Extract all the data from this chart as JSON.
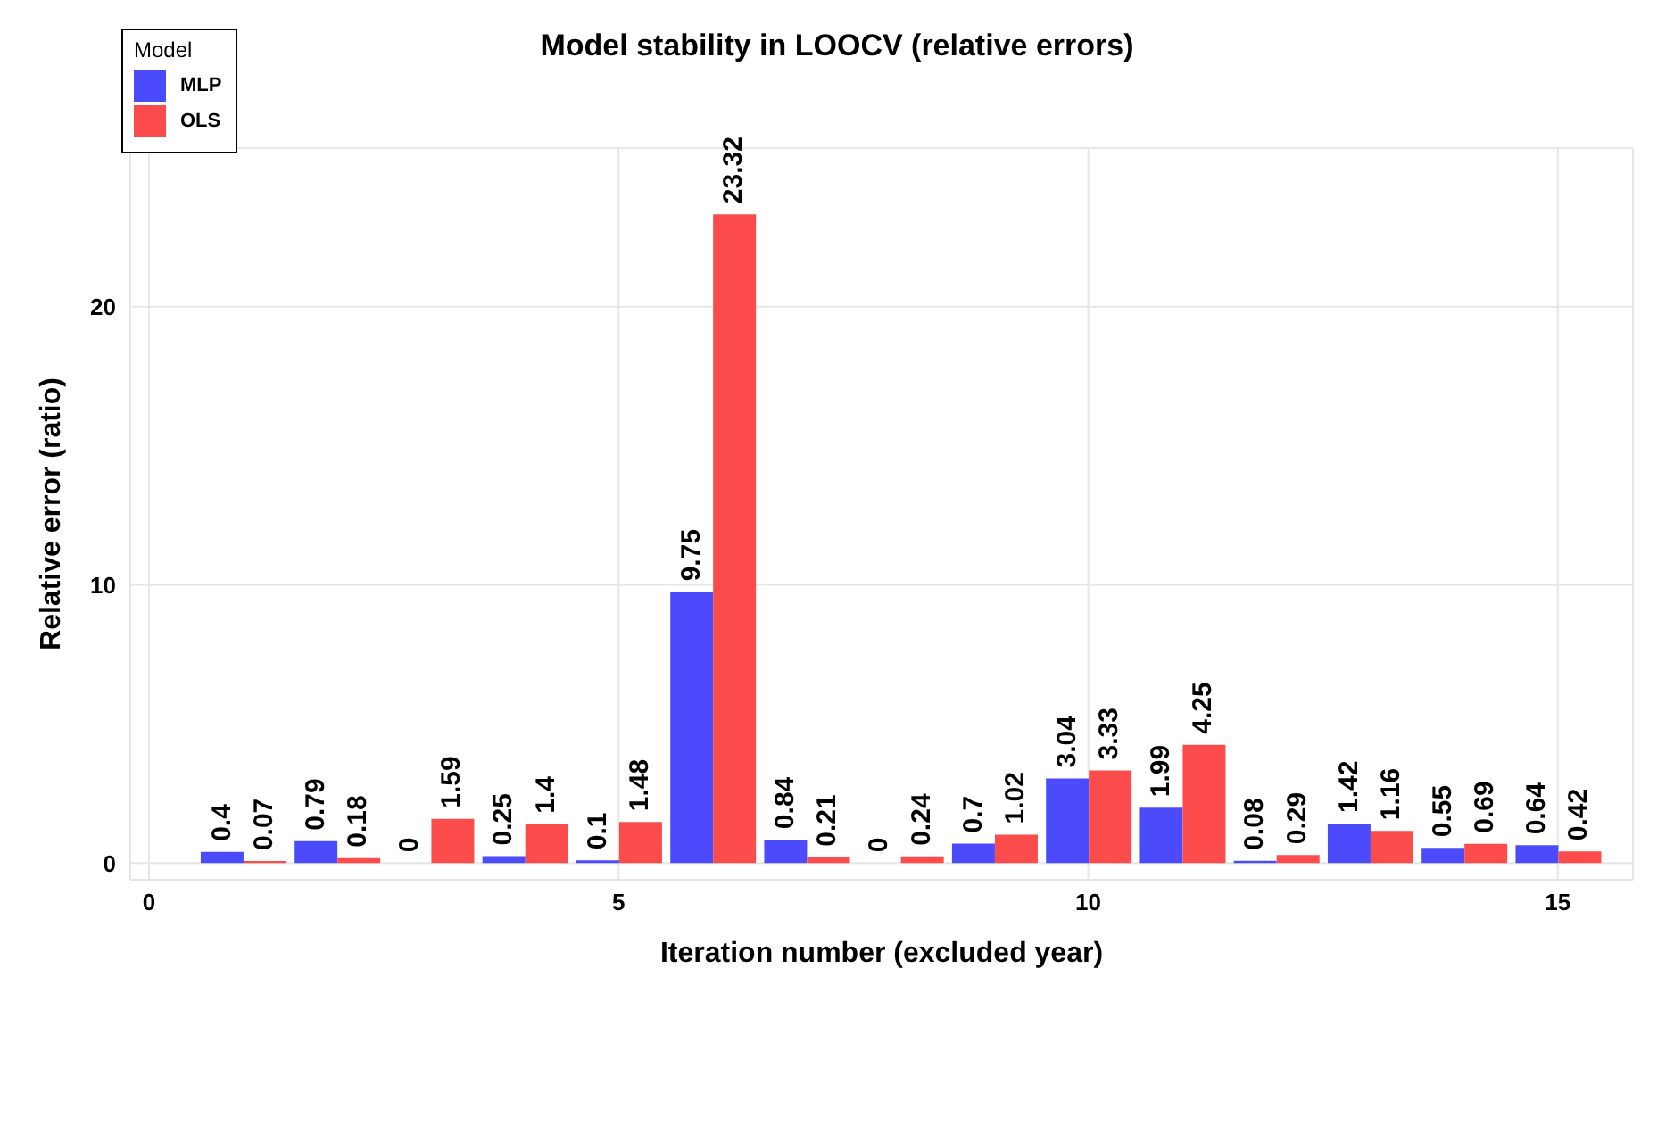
{
  "chart_data": {
    "type": "bar",
    "title": "Model stability in LOOCV (relative errors)",
    "xlabel": "Iteration number (excluded year)",
    "ylabel": "Relative error (ratio)",
    "legend_title": "Model",
    "x": [
      1,
      2,
      3,
      4,
      5,
      6,
      7,
      8,
      9,
      10,
      11,
      12,
      13,
      14,
      15
    ],
    "series": [
      {
        "name": "MLP",
        "color": "#4b4bfb",
        "values": [
          0.4,
          0.79,
          0,
          0.25,
          0.1,
          9.75,
          0.84,
          0,
          0.7,
          3.04,
          1.99,
          0.08,
          1.42,
          0.55,
          0.64
        ]
      },
      {
        "name": "OLS",
        "color": "#fb4b4b",
        "values": [
          0.07,
          0.18,
          1.59,
          1.4,
          1.48,
          23.32,
          0.21,
          0.24,
          1.02,
          3.33,
          4.25,
          0.29,
          1.16,
          0.69,
          0.42
        ]
      }
    ],
    "xlim": [
      -0.2,
      15.8
    ],
    "xticks": [
      0,
      5,
      10,
      15
    ],
    "ylim": [
      -0.6,
      25.7
    ],
    "yticks": [
      0,
      10,
      20
    ],
    "grid": true,
    "legend": "top left",
    "data_labels": true
  }
}
